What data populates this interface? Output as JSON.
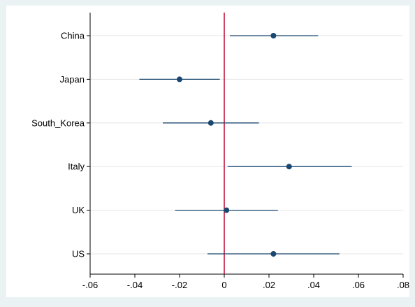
{
  "chart_data": {
    "type": "scatter",
    "subtype": "coefficient-plot-with-confidence-intervals",
    "title": "",
    "xlabel": "",
    "ylabel": "",
    "xlim": [
      -0.06,
      0.08
    ],
    "x_ticks": [
      -0.06,
      -0.04,
      -0.02,
      0,
      0.02,
      0.04,
      0.06,
      0.08
    ],
    "x_tick_labels": [
      "-.06",
      "-.04",
      "-.02",
      "0",
      ".02",
      ".04",
      ".06",
      ".08"
    ],
    "reference_line": {
      "x": 0,
      "color": "#c0143c"
    },
    "grid": true,
    "legend": "none",
    "colors": {
      "marker": "#1a476f",
      "ci_line": "#1a476f",
      "grid": "#e6e6e6",
      "outer_bg": "#eaf2f3",
      "plot_bg": "#ffffff"
    },
    "categories": [
      "China",
      "Japan",
      "South_Korea",
      "Italy",
      "UK",
      "US"
    ],
    "points": [
      {
        "label": "China",
        "estimate": 0.022,
        "ci_low": 0.0025,
        "ci_high": 0.042
      },
      {
        "label": "Japan",
        "estimate": -0.02,
        "ci_low": -0.038,
        "ci_high": -0.002
      },
      {
        "label": "South_Korea",
        "estimate": -0.006,
        "ci_low": -0.0275,
        "ci_high": 0.0155
      },
      {
        "label": "Italy",
        "estimate": 0.029,
        "ci_low": 0.0015,
        "ci_high": 0.057
      },
      {
        "label": "UK",
        "estimate": 0.001,
        "ci_low": -0.022,
        "ci_high": 0.024
      },
      {
        "label": "US",
        "estimate": 0.022,
        "ci_low": -0.0075,
        "ci_high": 0.0515
      }
    ]
  }
}
